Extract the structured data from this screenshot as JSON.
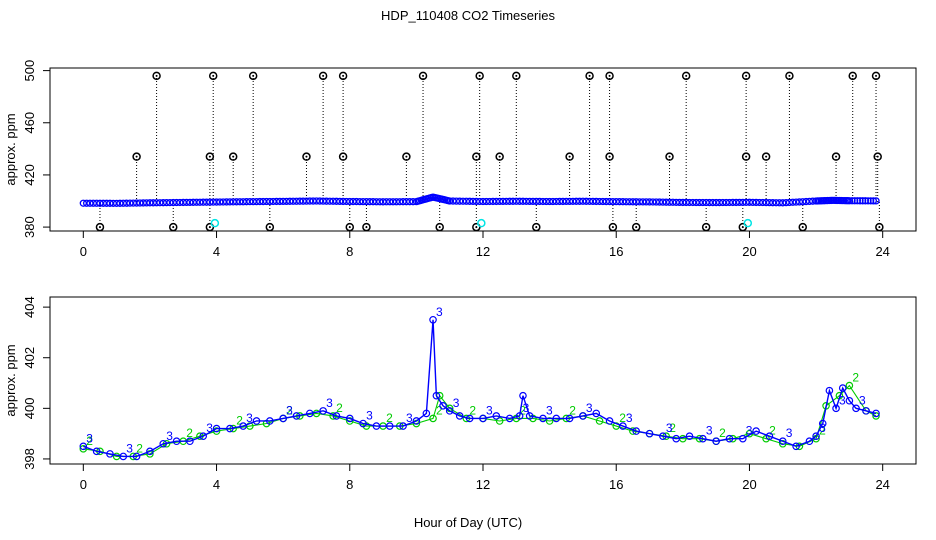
{
  "title": "HDP_110408  CO2 Timeseries",
  "xlabel": "Hour of Day (UTC)",
  "colors": {
    "main": "#0000ff",
    "secondary": "#00cc00",
    "outlier": "#000000",
    "flag": "#00e5e5"
  },
  "chart_data": [
    {
      "type": "scatter",
      "panel": "top",
      "ylabel": "approx. ppm",
      "xlim": [
        -1,
        25
      ],
      "ylim": [
        377,
        502
      ],
      "xticks": [
        0,
        4,
        8,
        12,
        16,
        20,
        24
      ],
      "yticks": [
        380,
        420,
        460,
        500
      ],
      "baseline": {
        "x": [
          0,
          1,
          2,
          3,
          4,
          5,
          6,
          7,
          8,
          9,
          10,
          10.5,
          11,
          12,
          13,
          14,
          15,
          16,
          17,
          18,
          19,
          20,
          21,
          22,
          22.5,
          23,
          23.8
        ],
        "y": [
          398.3,
          398.2,
          398.6,
          398.9,
          399.2,
          399.5,
          399.7,
          400,
          399.6,
          399.4,
          399.5,
          403,
          400,
          399.6,
          399.8,
          399.6,
          399.8,
          399.5,
          399.3,
          398.9,
          398.8,
          399,
          398.6,
          400,
          400.5,
          400.2,
          400.1
        ]
      },
      "high_outliers": {
        "x": [
          2.2,
          3.9,
          5.1,
          7.2,
          7.8,
          10.2,
          11.9,
          13.0,
          15.2,
          15.8,
          18.1,
          19.9,
          21.2,
          23.1,
          23.8
        ],
        "y": [
          496,
          496,
          496,
          496,
          496,
          496,
          496,
          496,
          496,
          496,
          496,
          496,
          496,
          496,
          496
        ]
      },
      "mid_outliers": {
        "x": [
          1.6,
          3.8,
          4.5,
          6.7,
          7.8,
          9.7,
          11.8,
          12.5,
          14.6,
          15.8,
          17.6,
          19.9,
          20.5,
          22.6,
          23.85
        ],
        "y": [
          434,
          434,
          434,
          434,
          434,
          434,
          434,
          434,
          434,
          434,
          434,
          434,
          434,
          434,
          434
        ]
      },
      "low_outliers": {
        "x": [
          0.5,
          2.7,
          3.8,
          5.6,
          8.0,
          8.5,
          10.7,
          11.8,
          13.6,
          15.9,
          16.6,
          18.7,
          19.8,
          21.6,
          23.9
        ],
        "y": [
          380,
          380,
          380,
          380,
          380,
          380,
          380,
          380,
          380,
          380,
          380,
          380,
          380,
          380,
          380
        ]
      },
      "flag_points": {
        "x": [
          3.95,
          11.95,
          19.95
        ],
        "y": [
          383,
          383,
          383
        ]
      }
    },
    {
      "type": "line",
      "panel": "bottom",
      "ylabel": "approx. ppm",
      "xlim": [
        -1,
        25
      ],
      "ylim": [
        397.8,
        404.4
      ],
      "xticks": [
        0,
        4,
        8,
        12,
        16,
        20,
        24
      ],
      "yticks": [
        398,
        400,
        402,
        404
      ],
      "series": [
        {
          "color": "#0000ff",
          "marker_label": "3",
          "x": [
            0,
            0.4,
            0.8,
            1.2,
            1.6,
            2.0,
            2.4,
            2.8,
            3.2,
            3.6,
            4.0,
            4.4,
            4.8,
            5.2,
            5.6,
            6.0,
            6.4,
            6.8,
            7.2,
            7.6,
            8.0,
            8.4,
            8.8,
            9.2,
            9.6,
            10.0,
            10.3,
            10.5,
            10.6,
            10.8,
            11.0,
            11.3,
            11.6,
            12.0,
            12.4,
            12.8,
            13.1,
            13.2,
            13.4,
            13.8,
            14.2,
            14.6,
            15.0,
            15.4,
            15.8,
            16.2,
            16.6,
            17.0,
            17.4,
            17.8,
            18.2,
            18.6,
            19.0,
            19.4,
            19.8,
            20.2,
            20.6,
            21.0,
            21.4,
            21.8,
            22.0,
            22.2,
            22.4,
            22.6,
            22.8,
            23.0,
            23.2,
            23.5,
            23.8
          ],
          "y": [
            398.5,
            398.3,
            398.2,
            398.1,
            398.1,
            398.3,
            398.6,
            398.7,
            398.7,
            398.9,
            399.2,
            399.2,
            399.3,
            399.5,
            399.5,
            399.6,
            399.7,
            399.8,
            399.9,
            399.7,
            399.6,
            399.4,
            399.3,
            399.3,
            399.3,
            399.5,
            399.8,
            403.5,
            400.5,
            400.1,
            399.9,
            399.7,
            399.6,
            399.6,
            399.7,
            399.6,
            399.7,
            400.5,
            399.7,
            399.6,
            399.6,
            399.6,
            399.7,
            399.8,
            399.5,
            399.3,
            399.1,
            399.0,
            398.9,
            398.8,
            398.9,
            398.8,
            398.7,
            398.8,
            398.8,
            399.1,
            398.9,
            398.7,
            398.5,
            398.7,
            398.9,
            399.4,
            400.7,
            400,
            400.8,
            400.3,
            400,
            399.9,
            399.8
          ]
        },
        {
          "color": "#00cc00",
          "marker_label": "2",
          "x": [
            0,
            0.5,
            1.0,
            1.5,
            2.0,
            2.5,
            3.0,
            3.5,
            4.0,
            4.5,
            5.0,
            5.5,
            6.0,
            6.5,
            7.0,
            7.5,
            8.0,
            8.5,
            9.0,
            9.5,
            10.0,
            10.5,
            10.7,
            11.0,
            11.5,
            12.0,
            12.5,
            13.0,
            13.5,
            14.0,
            14.5,
            15.0,
            15.5,
            16.0,
            16.5,
            17.0,
            17.5,
            18.0,
            18.5,
            19.0,
            19.5,
            20.0,
            20.5,
            21.0,
            21.5,
            22.0,
            22.3,
            22.7,
            23.0,
            23.5,
            23.8
          ],
          "y": [
            398.4,
            398.3,
            398.1,
            398.1,
            398.2,
            398.6,
            398.7,
            398.9,
            399.1,
            399.2,
            399.3,
            399.4,
            399.6,
            399.7,
            399.8,
            399.7,
            399.5,
            399.3,
            399.3,
            399.3,
            399.4,
            399.6,
            400.5,
            400.0,
            399.6,
            399.6,
            399.5,
            399.6,
            399.6,
            399.5,
            399.6,
            399.7,
            399.5,
            399.3,
            399.1,
            399.0,
            398.9,
            398.8,
            398.8,
            398.7,
            398.8,
            399.0,
            398.8,
            398.6,
            398.5,
            398.8,
            400.1,
            400.5,
            400.9,
            399.9,
            399.7
          ]
        }
      ]
    }
  ]
}
